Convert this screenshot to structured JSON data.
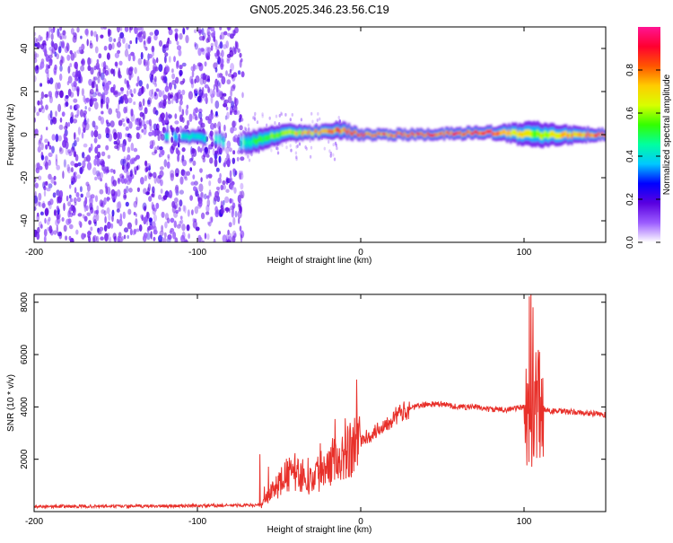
{
  "figure_title": "GN05.2025.346.23.56.C19",
  "chart_data": [
    {
      "type": "heatmap",
      "title": "GN05.2025.346.23.56.C19",
      "xlabel": "Height of straight line (km)",
      "ylabel": "Frequency (Hz)",
      "xlim": [
        -200,
        150
      ],
      "ylim": [
        -50,
        50
      ],
      "xticks": [
        -200,
        -100,
        0,
        100
      ],
      "yticks": [
        -40,
        -20,
        0,
        20,
        40
      ],
      "colorbar": {
        "label": "Normalized spectral amplitude",
        "range": [
          0.0,
          1.0
        ],
        "ticks": [
          0.0,
          0.2,
          0.4,
          0.6,
          0.8
        ],
        "tick_labels": [
          "0.0",
          "0.2",
          "0.4",
          "0.6",
          "0.8"
        ],
        "colormap": [
          "#ffffff",
          "#9b5cff",
          "#5a00e0",
          "#0000ff",
          "#00c8ff",
          "#00ffa0",
          "#33ff00",
          "#d8ff00",
          "#ffcc00",
          "#ff5500",
          "#ff0030",
          "#ff1493"
        ]
      },
      "noise_region_km": [
        -200,
        -72
      ],
      "signal_band": [
        {
          "x": -120,
          "center_hz": -1,
          "halfwidth_hz": 3,
          "amp": 0.4
        },
        {
          "x": -100,
          "center_hz": -1,
          "halfwidth_hz": 3,
          "amp": 0.42
        },
        {
          "x": -72,
          "center_hz": -4,
          "halfwidth_hz": 5,
          "amp": 0.45
        },
        {
          "x": -60,
          "center_hz": -2,
          "halfwidth_hz": 5,
          "amp": 0.55
        },
        {
          "x": -45,
          "center_hz": 1,
          "halfwidth_hz": 4,
          "amp": 0.65
        },
        {
          "x": -30,
          "center_hz": 1,
          "halfwidth_hz": 3,
          "amp": 0.75
        },
        {
          "x": -12,
          "center_hz": 2,
          "halfwidth_hz": 4,
          "amp": 0.8
        },
        {
          "x": 0,
          "center_hz": 0,
          "halfwidth_hz": 2.5,
          "amp": 0.85
        },
        {
          "x": 40,
          "center_hz": 0,
          "halfwidth_hz": 2.5,
          "amp": 0.85
        },
        {
          "x": 80,
          "center_hz": 1,
          "halfwidth_hz": 3,
          "amp": 0.9
        },
        {
          "x": 105,
          "center_hz": 0,
          "halfwidth_hz": 6,
          "amp": 0.6
        },
        {
          "x": 150,
          "center_hz": 0,
          "halfwidth_hz": 2.5,
          "amp": 0.9
        }
      ]
    },
    {
      "type": "line",
      "xlabel": "Height of straight line (km)",
      "ylabel": "SNR (10 * v/v)",
      "xlim": [
        -200,
        150
      ],
      "ylim": [
        0,
        8300
      ],
      "xticks": [
        -200,
        -100,
        0,
        100
      ],
      "yticks": [
        2000,
        4000,
        6000,
        8000
      ],
      "series": [
        {
          "name": "SNR",
          "color": "#e8302a",
          "x": [
            -200,
            -150,
            -100,
            -61,
            -55,
            -45,
            -40,
            -30,
            -20,
            -10,
            0,
            10,
            20,
            30,
            40,
            50,
            60,
            70,
            80,
            90,
            100,
            104,
            107,
            110,
            115,
            130,
            150
          ],
          "y": [
            200,
            200,
            220,
            250,
            700,
            1400,
            1500,
            1200,
            1900,
            2300,
            2700,
            3100,
            3600,
            3950,
            4100,
            4100,
            4000,
            4000,
            3900,
            3900,
            4000,
            3600,
            4200,
            4000,
            3850,
            3800,
            3700
          ]
        }
      ]
    }
  ]
}
